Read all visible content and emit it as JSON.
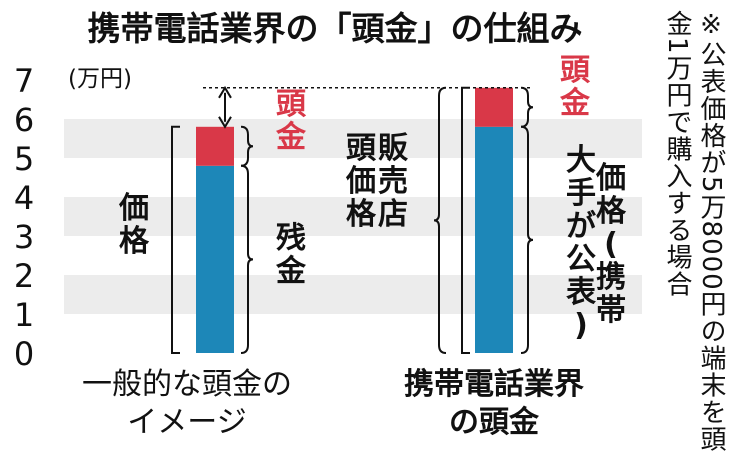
{
  "title": "携帯電話業界の「頭金」の仕組み",
  "note": "※公表価格が5万8000円の端末を頭金1万円で購入する場合",
  "colors": {
    "background": "#ffffff",
    "stripe": "#ececec",
    "base_segment": "#1d87b8",
    "top_segment": "#d93848",
    "text": "#111111",
    "accent_text": "#d93848"
  },
  "chart_data": {
    "type": "bar",
    "stacked": true,
    "title": "携帯電話業界の「頭金」の仕組み",
    "unit_label": "(万円)",
    "ylim": [
      0,
      7
    ],
    "y_ticks": [
      "0",
      "1",
      "2",
      "3",
      "4",
      "5",
      "6",
      "7"
    ],
    "grid": "alternating horizontal bands",
    "categories": [
      [
        "一般的な頭金の",
        "イメージ"
      ],
      [
        "携帯電話業界",
        "の頭金"
      ]
    ],
    "bars": [
      {
        "segments": [
          {
            "value": 4.8,
            "color": "#1d87b8"
          },
          {
            "value": 1.0,
            "color": "#d93848"
          }
        ]
      },
      {
        "segments": [
          {
            "value": 5.8,
            "color": "#1d87b8"
          },
          {
            "value": 1.0,
            "color": "#d93848"
          }
        ]
      }
    ],
    "annotations": [
      {
        "text": "頭金",
        "color": "#d93848"
      },
      {
        "text": "価格",
        "color": "#111111"
      },
      {
        "text": "残金",
        "color": "#111111"
      },
      {
        "text": "頭金",
        "color": "#d93848"
      },
      {
        "text": "販売店",
        "color": "#111111"
      },
      {
        "text": "頭価格",
        "color": "#111111"
      },
      {
        "text": "価格(携帯",
        "color": "#111111"
      },
      {
        "text": "大手が公表)",
        "color": "#111111"
      }
    ]
  }
}
